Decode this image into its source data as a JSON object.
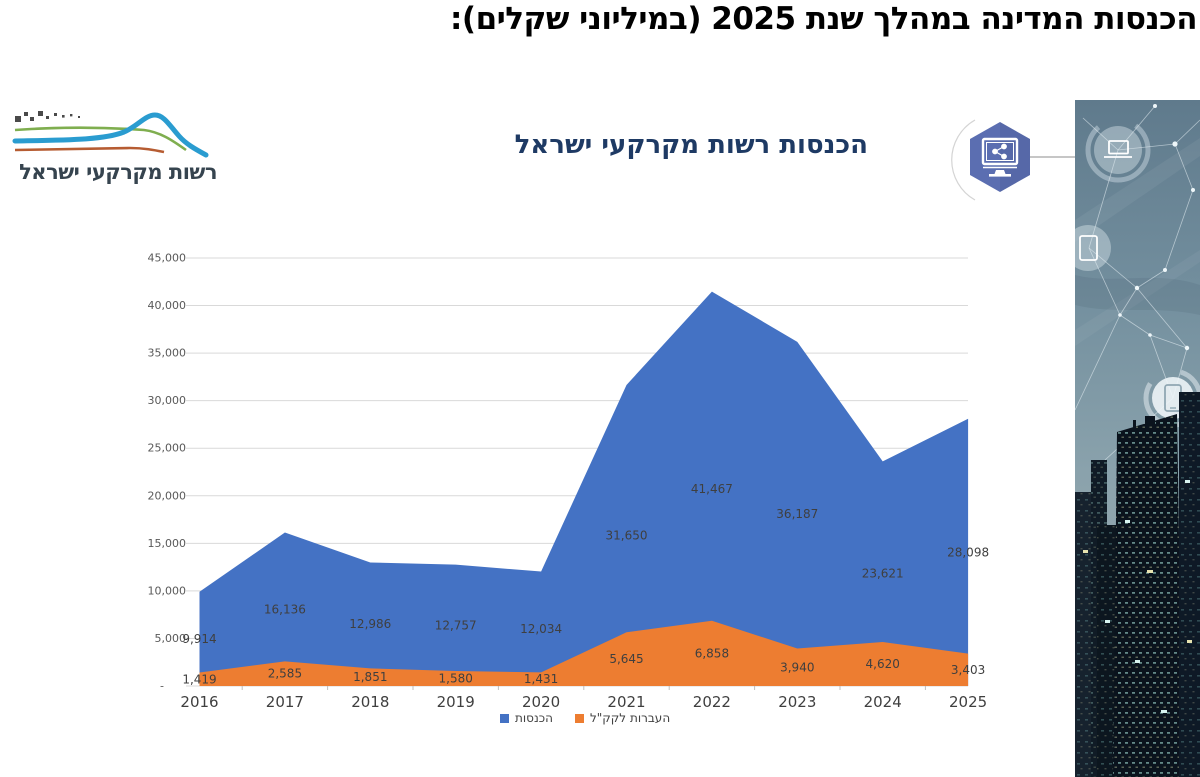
{
  "page_title": "הכנסות המדינה במהלך שנת 2025 (במיליוני שקלים):",
  "logo": {
    "text": "רשות מקרקעי ישראל",
    "icon": "landscape-waves-icon"
  },
  "chart": {
    "title": "הכנסות רשות מקרקעי ישראל",
    "badge_icon": "monitor-share-hexagon-icon"
  },
  "decor": {
    "strip_icons": [
      "laptop-circle-icon",
      "tablet-circle-icon",
      "smartphone-circle-icon"
    ],
    "strip_theme": "night-city-network-photo"
  },
  "chart_data": {
    "type": "area",
    "categories": [
      "2016",
      "2017",
      "2018",
      "2019",
      "2020",
      "2021",
      "2022",
      "2023",
      "2024",
      "2025"
    ],
    "series": [
      {
        "name": "הכנסות",
        "color": "#4472C4",
        "values": [
          9914,
          16136,
          12986,
          12757,
          12034,
          31650,
          41467,
          36187,
          23621,
          28098
        ]
      },
      {
        "name": "העברות לקק\"ל",
        "color": "#ED7D31",
        "values": [
          1419,
          2585,
          1851,
          1580,
          1431,
          5645,
          6858,
          3940,
          4620,
          3403
        ]
      }
    ],
    "ylim": [
      0,
      45000
    ],
    "ytick_step": 5000,
    "ytick_labels": [
      "-",
      "5,000",
      "10,000",
      "15,000",
      "20,000",
      "25,000",
      "30,000",
      "35,000",
      "40,000",
      "45,000"
    ],
    "grid": true,
    "data_labels": true,
    "legend_position": "bottom",
    "colors": {
      "gridline": "#d9d9d9",
      "axis_text": "#595959",
      "category_text": "#3f3f3f",
      "data_label_text": "#3f3f3f"
    }
  }
}
